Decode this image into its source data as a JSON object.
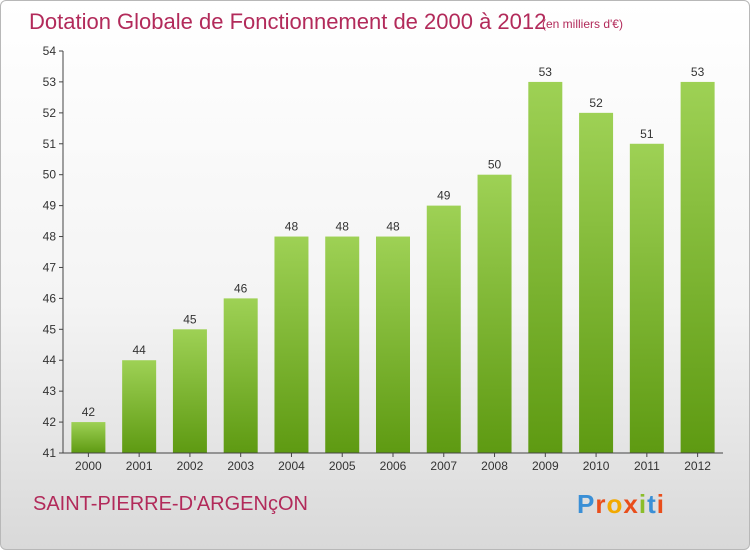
{
  "header": {
    "title": "Dotation Globale de Fonctionnement de 2000 à 2012",
    "unit": "(en milliers d'€)"
  },
  "footer": {
    "commune": "SAINT-PIERRE-D'ARGENçON",
    "logo_text": "Proxiti",
    "logo_colors": [
      "#3a8fd6",
      "#e94e1b",
      "#f2a900",
      "#e94e1b",
      "#8bbd2a",
      "#3a8fd6",
      "#e94e1b"
    ]
  },
  "colors": {
    "bar_top": "#9ed155",
    "bar_bottom": "#5e9a12",
    "axis": "#444444",
    "grid": "#cccccc"
  },
  "chart_data": {
    "type": "bar",
    "categories": [
      "2000",
      "2001",
      "2002",
      "2003",
      "2004",
      "2005",
      "2006",
      "2007",
      "2008",
      "2009",
      "2010",
      "2011",
      "2012"
    ],
    "values": [
      42,
      44,
      45,
      46,
      48,
      48,
      48,
      49,
      50,
      53,
      52,
      51,
      53
    ],
    "title": "Dotation Globale de Fonctionnement de 2000 à 2012",
    "ylabel": "",
    "xlabel": "",
    "ylim": [
      41,
      54
    ],
    "yticks": [
      41,
      42,
      43,
      44,
      45,
      46,
      47,
      48,
      49,
      50,
      51,
      52,
      53,
      54
    ],
    "grid": false,
    "data_labels": true
  }
}
